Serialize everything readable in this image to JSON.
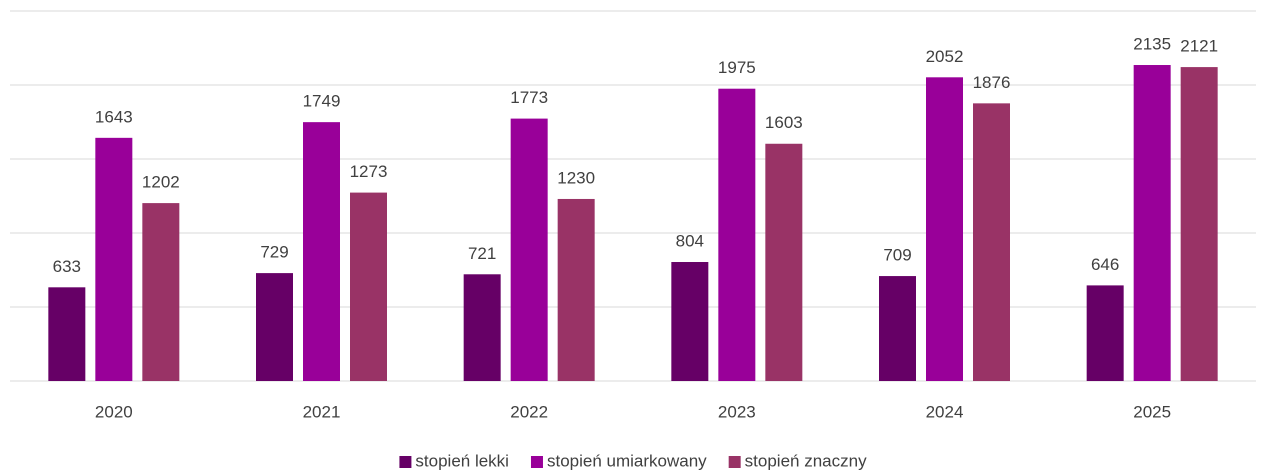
{
  "chart_data": {
    "type": "bar",
    "categories": [
      "2020",
      "2021",
      "2022",
      "2023",
      "2024",
      "2025"
    ],
    "series": [
      {
        "name": "stopień lekki",
        "color": "#660066",
        "values": [
          633,
          729,
          721,
          804,
          709,
          646
        ]
      },
      {
        "name": "stopień umiarkowany",
        "color": "#990099",
        "values": [
          1643,
          1749,
          1773,
          1975,
          2052,
          2135
        ]
      },
      {
        "name": "stopień znaczny",
        "color": "#993366",
        "values": [
          1202,
          1273,
          1230,
          1603,
          1876,
          2121
        ]
      }
    ],
    "ylim": [
      0,
      2500
    ],
    "yticks": [
      0,
      500,
      1000,
      1500,
      2000,
      2500
    ],
    "grid": true,
    "legend": "bottom"
  }
}
